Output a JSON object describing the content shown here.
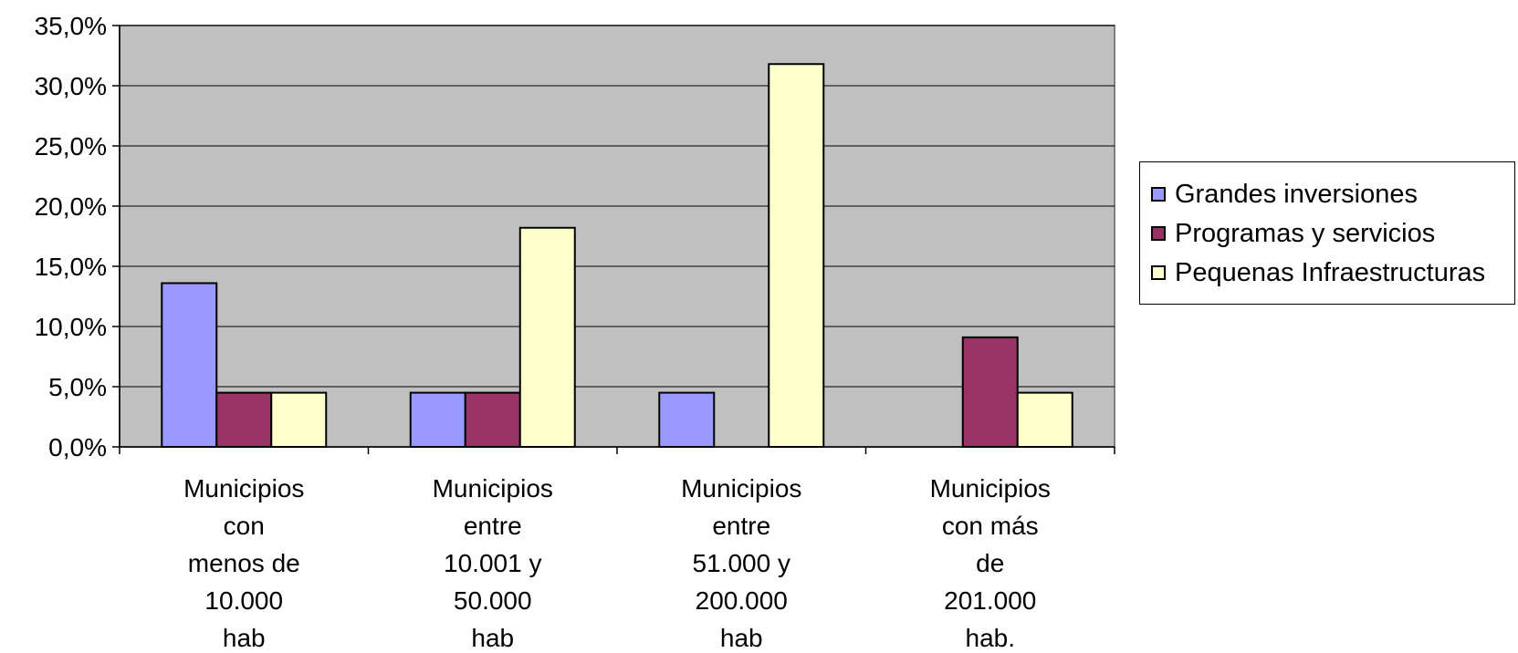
{
  "chart_data": {
    "type": "bar",
    "title": "",
    "xlabel": "",
    "ylabel": "",
    "ylim": [
      0,
      35
    ],
    "grid": true,
    "legend_position": "right",
    "plot_background": "#C0C0C0",
    "y_ticks": [
      "0,0%",
      "5,0%",
      "10,0%",
      "15,0%",
      "20,0%",
      "25,0%",
      "30,0%",
      "35,0%"
    ],
    "categories": [
      [
        "Municipios",
        "con",
        "menos de",
        "10.000",
        "hab"
      ],
      [
        "Municipios",
        "entre",
        "10.001 y",
        "50.000",
        "hab"
      ],
      [
        "Municipios",
        "entre",
        "51.000 y",
        "200.000",
        "hab"
      ],
      [
        "Municipios",
        "con más",
        "de",
        "201.000",
        "hab."
      ]
    ],
    "series": [
      {
        "name": "Grandes inversiones",
        "color": "#9999FF",
        "values": [
          13.6,
          4.5,
          4.5,
          0
        ]
      },
      {
        "name": "Programas y servicios",
        "color": "#993366",
        "values": [
          4.5,
          4.5,
          0,
          9.1
        ]
      },
      {
        "name": "Pequenas Infraestructuras",
        "color": "#FFFFCC",
        "values": [
          4.5,
          18.2,
          31.8,
          4.5
        ]
      }
    ]
  }
}
